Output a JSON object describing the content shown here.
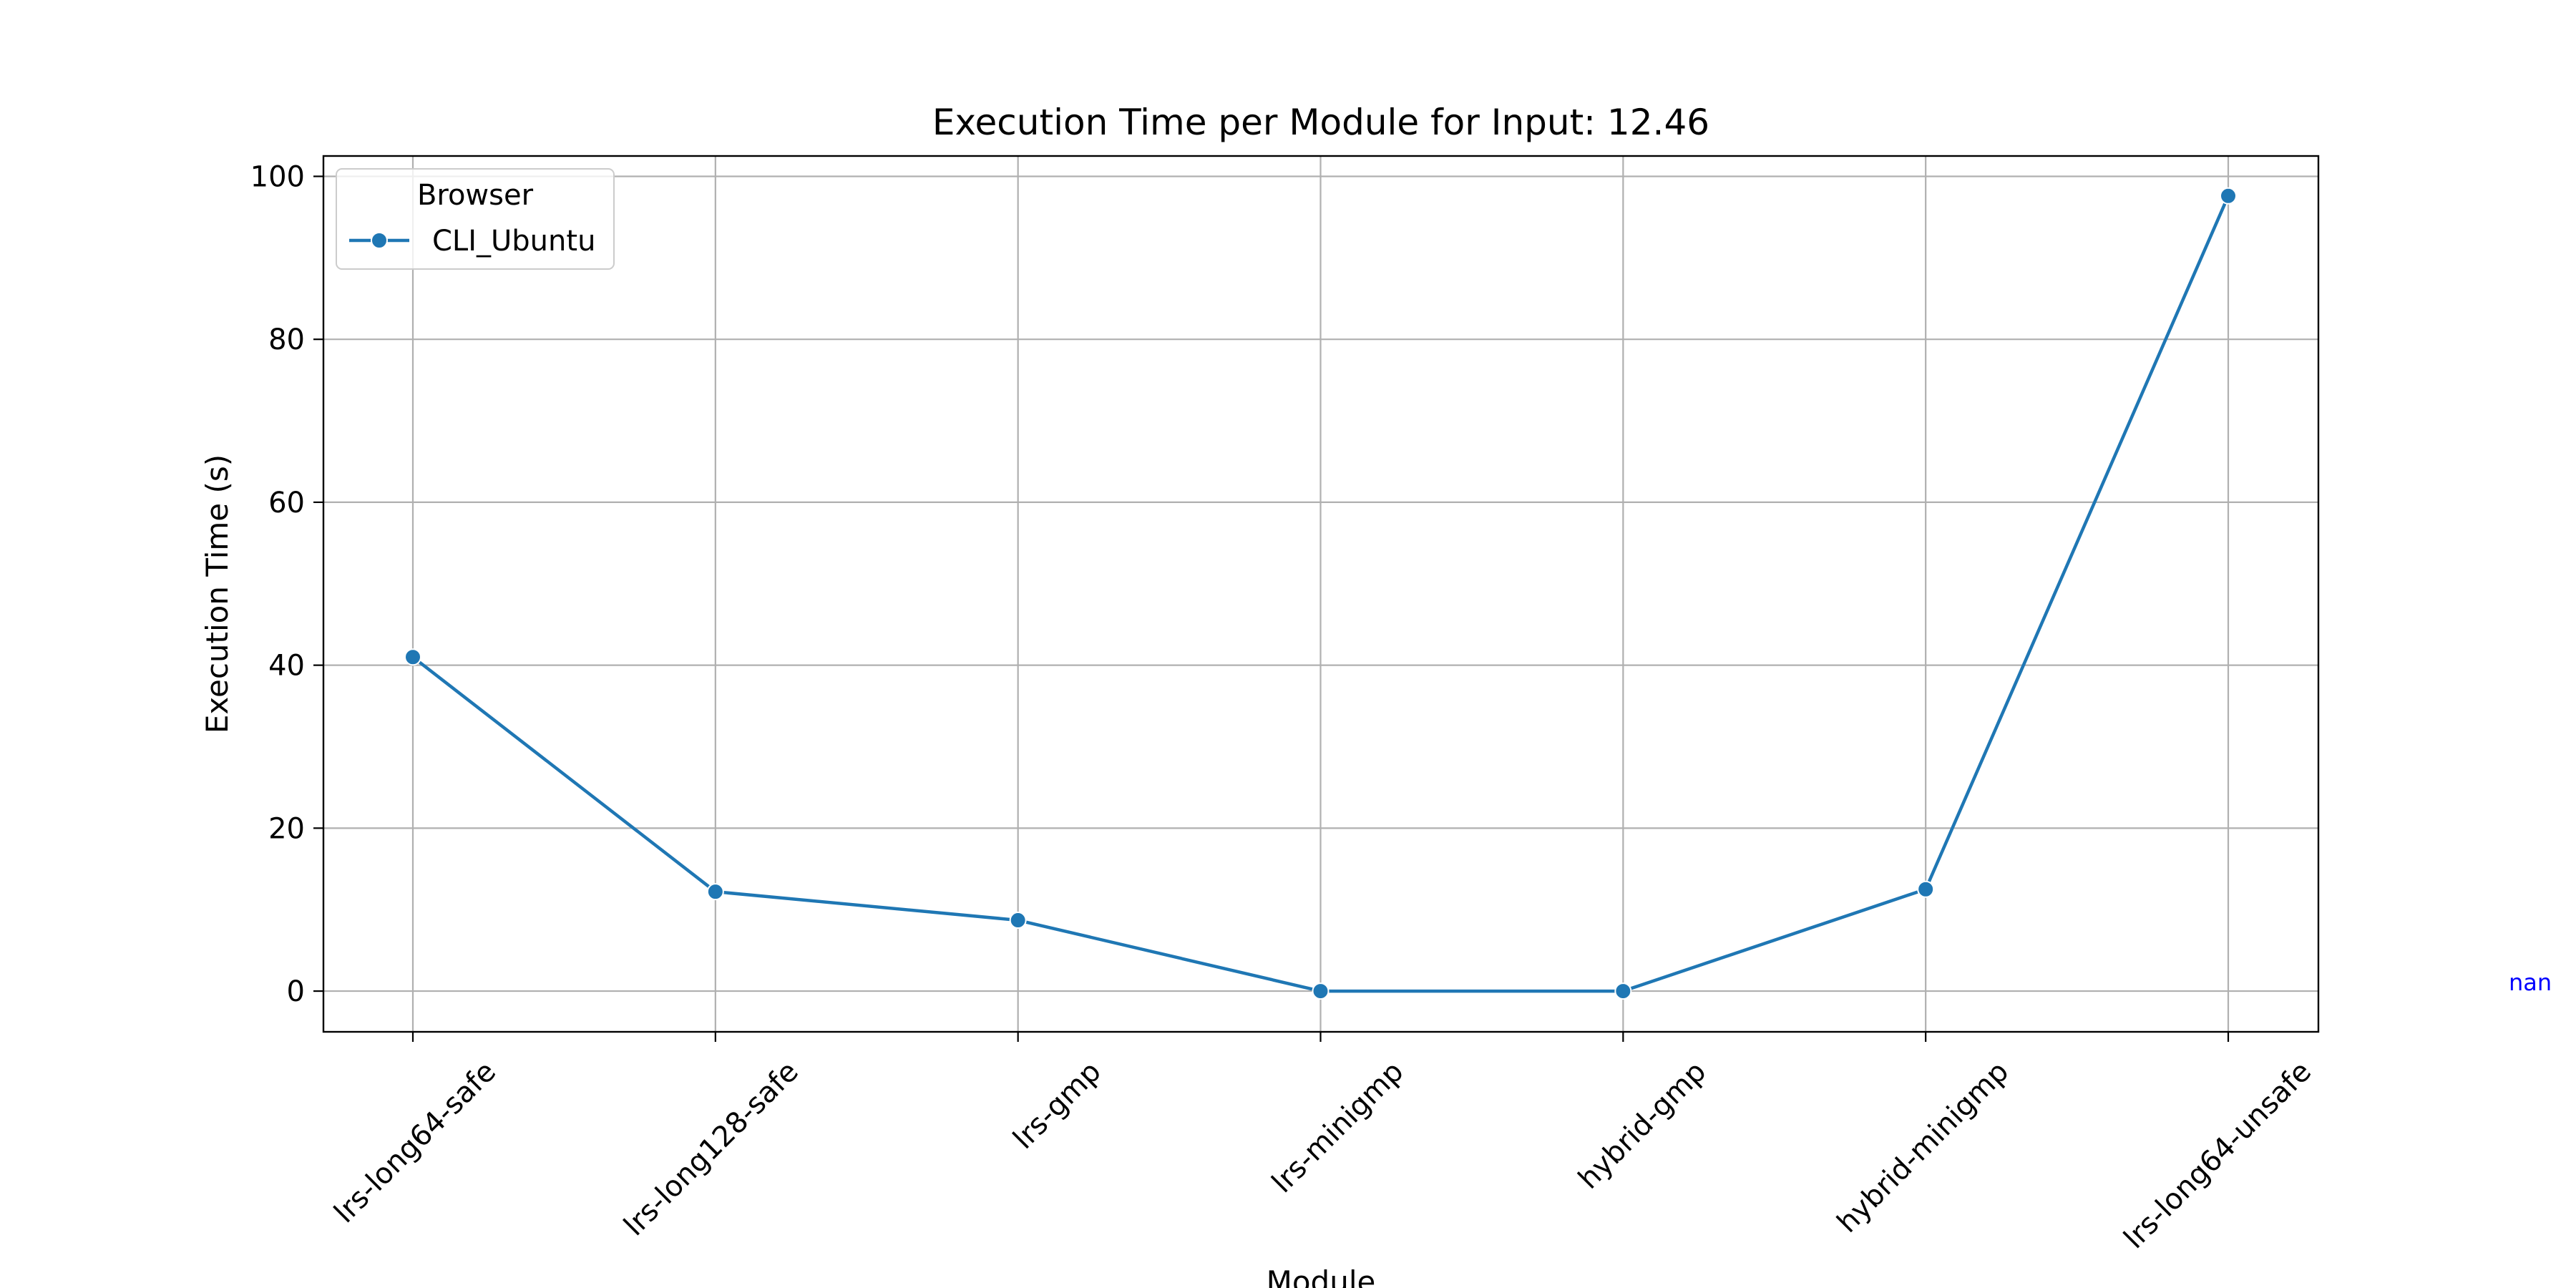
{
  "chart_data": {
    "type": "line",
    "title": "Execution Time per Module for Input: 12.46",
    "xlabel": "Module",
    "ylabel": "Execution Time (s)",
    "categories": [
      "lrs-long64-safe",
      "lrs-long128-safe",
      "lrs-gmp",
      "lrs-minigmp",
      "hybrid-gmp",
      "hybrid-minigmp",
      "lrs-long64-unsafe"
    ],
    "series": [
      {
        "name": "CLI_Ubuntu",
        "values": [
          41.0,
          12.2,
          8.7,
          0.0,
          0.0,
          12.5,
          97.6
        ],
        "color": "#1f77b4"
      }
    ],
    "ylim": [
      -5,
      102.5
    ],
    "yticks": [
      0,
      20,
      40,
      60,
      80,
      100
    ],
    "grid": true,
    "legend": {
      "title": "Browser",
      "position": "top-left"
    },
    "annotation": {
      "text": "nan",
      "color": "#0000ff"
    }
  }
}
